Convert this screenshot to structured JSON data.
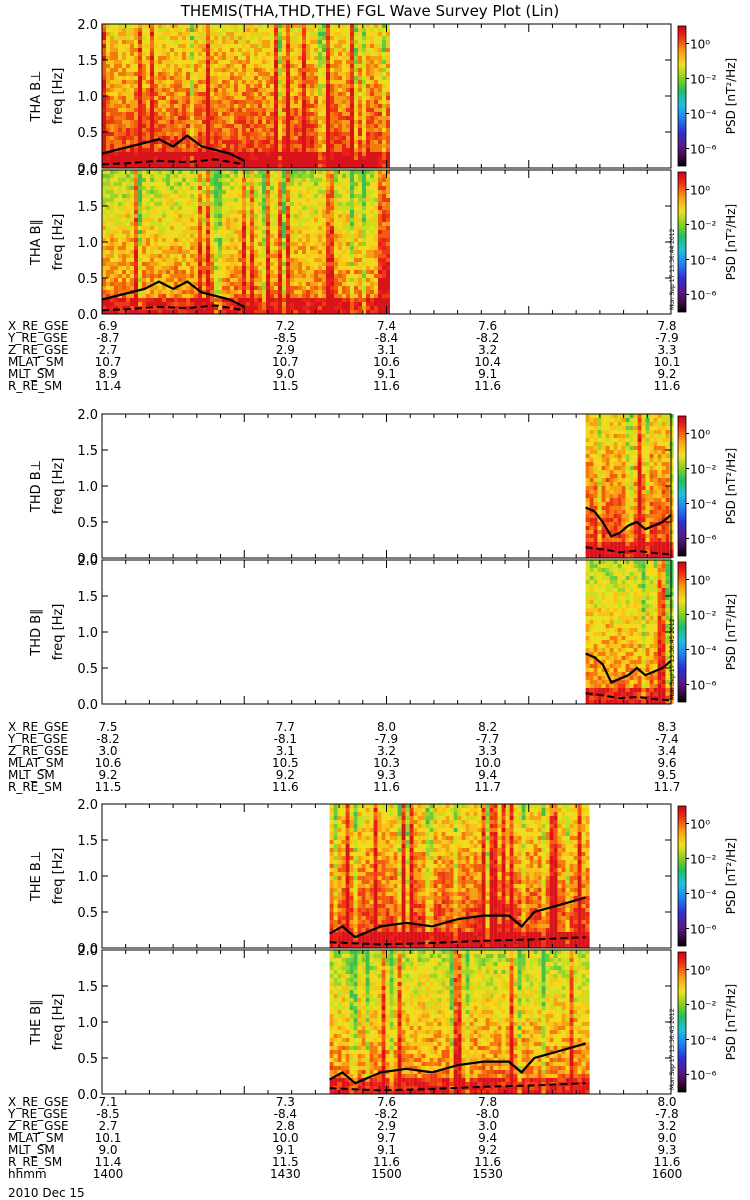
{
  "title": "THEMIS(THA,THD,THE) FGL Wave Survey Plot (Lin)",
  "date_label": "2010 Dec 15",
  "colorbar": {
    "label": "PSD [nT²/Hz]",
    "tick_labels": [
      "10⁰",
      "10⁻²",
      "10⁻⁴",
      "10⁻⁶"
    ],
    "tick_exponents": [
      0,
      -2,
      -4,
      -6
    ],
    "range_exponent": [
      -7,
      1
    ]
  },
  "ylabel_unit": "freq [Hz]",
  "colors": {
    "spectro_high": "#e8201a",
    "spectro_mid": "#f6d71c",
    "spectro_low": "#2fb84a",
    "line": "#000000"
  },
  "chart_data": [
    {
      "type": "heatmap",
      "probe": "THA",
      "panels": [
        {
          "name": "THA B⊥",
          "ylim": [
            0,
            2.0
          ],
          "yticks": [
            "0.0",
            "0.5",
            "1.0",
            "1.5",
            "2.0"
          ],
          "data_x_range": [
            0,
            0.5
          ],
          "solid_line": [
            [
              0,
              0.2
            ],
            [
              0.05,
              0.25
            ],
            [
              0.1,
              0.3
            ],
            [
              0.15,
              0.35
            ],
            [
              0.2,
              0.4
            ],
            [
              0.25,
              0.3
            ],
            [
              0.3,
              0.45
            ],
            [
              0.35,
              0.3
            ],
            [
              0.4,
              0.25
            ],
            [
              0.45,
              0.2
            ],
            [
              0.5,
              0.1
            ]
          ],
          "dashed_line": [
            [
              0,
              0.05
            ],
            [
              0.1,
              0.07
            ],
            [
              0.2,
              0.1
            ],
            [
              0.3,
              0.08
            ],
            [
              0.4,
              0.12
            ],
            [
              0.5,
              0.05
            ]
          ],
          "stamp": ""
        },
        {
          "name": "THA B∥",
          "ylim": [
            0,
            2.0
          ],
          "yticks": [
            "0.0",
            "0.5",
            "1.0",
            "1.5",
            "2.0"
          ],
          "data_x_range": [
            0,
            0.5
          ],
          "solid_line": [
            [
              0,
              0.2
            ],
            [
              0.05,
              0.25
            ],
            [
              0.1,
              0.3
            ],
            [
              0.15,
              0.35
            ],
            [
              0.2,
              0.45
            ],
            [
              0.25,
              0.35
            ],
            [
              0.3,
              0.45
            ],
            [
              0.35,
              0.3
            ],
            [
              0.4,
              0.25
            ],
            [
              0.45,
              0.2
            ],
            [
              0.5,
              0.1
            ]
          ],
          "dashed_line": [
            [
              0,
              0.05
            ],
            [
              0.1,
              0.07
            ],
            [
              0.2,
              0.1
            ],
            [
              0.3,
              0.08
            ],
            [
              0.4,
              0.12
            ],
            [
              0.5,
              0.05
            ]
          ],
          "stamp": "Mon Sep 17 13:36:44 2012"
        }
      ],
      "ephem": {
        "labels": [
          "X_RE_GSE",
          "Y_RE_GSE",
          "Z_RE_GSE",
          "MLAT_SM",
          "MLT_SM",
          "R_RE_SM"
        ],
        "columns": [
          [
            "6.9",
            "-8.7",
            "2.7",
            "10.7",
            "8.9",
            "11.4"
          ],
          [
            "7.2",
            "-8.5",
            "2.9",
            "10.7",
            "9.0",
            "11.5"
          ],
          [
            "7.4",
            "-8.4",
            "3.1",
            "10.6",
            "9.1",
            "11.6"
          ],
          [
            "7.6",
            "-8.2",
            "3.2",
            "10.4",
            "9.1",
            "11.6"
          ],
          [
            "7.8",
            "-7.9",
            "3.3",
            "10.1",
            "9.2",
            "11.6"
          ]
        ]
      }
    },
    {
      "type": "heatmap",
      "probe": "THD",
      "panels": [
        {
          "name": "THD B⊥",
          "ylim": [
            0,
            2.0
          ],
          "yticks": [
            "0.0",
            "0.5",
            "1.0",
            "1.5",
            "2.0"
          ],
          "data_x_range": [
            0.85,
            1.0
          ],
          "solid_line": [
            [
              0,
              0.7
            ],
            [
              0.1,
              0.65
            ],
            [
              0.2,
              0.5
            ],
            [
              0.3,
              0.3
            ],
            [
              0.4,
              0.35
            ],
            [
              0.5,
              0.45
            ],
            [
              0.6,
              0.5
            ],
            [
              0.7,
              0.4
            ],
            [
              0.8,
              0.45
            ],
            [
              0.9,
              0.5
            ],
            [
              1.0,
              0.6
            ]
          ],
          "dashed_line": [
            [
              0,
              0.15
            ],
            [
              0.2,
              0.12
            ],
            [
              0.4,
              0.08
            ],
            [
              0.6,
              0.1
            ],
            [
              0.8,
              0.07
            ],
            [
              1.0,
              0.05
            ]
          ],
          "stamp": ""
        },
        {
          "name": "THD B∥",
          "ylim": [
            0,
            2.0
          ],
          "yticks": [
            "0.0",
            "0.5",
            "1.0",
            "1.5",
            "2.0"
          ],
          "data_x_range": [
            0.85,
            1.0
          ],
          "solid_line": [
            [
              0,
              0.7
            ],
            [
              0.1,
              0.65
            ],
            [
              0.2,
              0.55
            ],
            [
              0.3,
              0.3
            ],
            [
              0.4,
              0.35
            ],
            [
              0.5,
              0.4
            ],
            [
              0.6,
              0.5
            ],
            [
              0.7,
              0.4
            ],
            [
              0.8,
              0.45
            ],
            [
              0.9,
              0.5
            ],
            [
              1.0,
              0.6
            ]
          ],
          "dashed_line": [
            [
              0,
              0.15
            ],
            [
              0.2,
              0.12
            ],
            [
              0.4,
              0.08
            ],
            [
              0.6,
              0.1
            ],
            [
              0.8,
              0.07
            ],
            [
              1.0,
              0.05
            ]
          ],
          "stamp": "Mon Sep 17 13:36:45 2012"
        }
      ],
      "ephem": {
        "labels": [
          "X_RE_GSE",
          "Y_RE_GSE",
          "Z_RE_GSE",
          "MLAT_SM",
          "MLT_SM",
          "R_RE_SM"
        ],
        "columns": [
          [
            "7.5",
            "-8.2",
            "3.0",
            "10.6",
            "9.2",
            "11.5"
          ],
          [
            "7.7",
            "-8.1",
            "3.1",
            "10.5",
            "9.2",
            "11.6"
          ],
          [
            "8.0",
            "-7.9",
            "3.2",
            "10.3",
            "9.3",
            "11.6"
          ],
          [
            "8.2",
            "-7.7",
            "3.3",
            "10.0",
            "9.4",
            "11.7"
          ],
          [
            "8.3",
            "-7.4",
            "3.4",
            "9.6",
            "9.5",
            "11.7"
          ]
        ]
      }
    },
    {
      "type": "heatmap",
      "probe": "THE",
      "panels": [
        {
          "name": "THE B⊥",
          "ylim": [
            0,
            2.0
          ],
          "yticks": [
            "0.0",
            "0.5",
            "1.0",
            "1.5",
            "2.0"
          ],
          "data_x_range": [
            0.4,
            0.85
          ],
          "solid_line": [
            [
              0,
              0.2
            ],
            [
              0.05,
              0.3
            ],
            [
              0.1,
              0.15
            ],
            [
              0.2,
              0.3
            ],
            [
              0.3,
              0.35
            ],
            [
              0.4,
              0.3
            ],
            [
              0.5,
              0.4
            ],
            [
              0.6,
              0.45
            ],
            [
              0.7,
              0.45
            ],
            [
              0.75,
              0.3
            ],
            [
              0.8,
              0.5
            ],
            [
              0.9,
              0.6
            ],
            [
              1.0,
              0.7
            ]
          ],
          "dashed_line": [
            [
              0,
              0.08
            ],
            [
              0.2,
              0.05
            ],
            [
              0.4,
              0.07
            ],
            [
              0.6,
              0.1
            ],
            [
              0.8,
              0.12
            ],
            [
              1.0,
              0.15
            ]
          ],
          "stamp": ""
        },
        {
          "name": "THE B∥",
          "ylim": [
            0,
            2.0
          ],
          "yticks": [
            "0.0",
            "0.5",
            "1.0",
            "1.5",
            "2.0"
          ],
          "data_x_range": [
            0.4,
            0.85
          ],
          "solid_line": [
            [
              0,
              0.2
            ],
            [
              0.05,
              0.3
            ],
            [
              0.1,
              0.15
            ],
            [
              0.2,
              0.3
            ],
            [
              0.3,
              0.35
            ],
            [
              0.4,
              0.3
            ],
            [
              0.5,
              0.4
            ],
            [
              0.6,
              0.45
            ],
            [
              0.7,
              0.45
            ],
            [
              0.75,
              0.3
            ],
            [
              0.8,
              0.5
            ],
            [
              0.9,
              0.6
            ],
            [
              1.0,
              0.7
            ]
          ],
          "dashed_line": [
            [
              0,
              0.08
            ],
            [
              0.2,
              0.05
            ],
            [
              0.4,
              0.07
            ],
            [
              0.6,
              0.1
            ],
            [
              0.8,
              0.12
            ],
            [
              1.0,
              0.15
            ]
          ],
          "stamp": "Mon Sep 17 13:36:45 2012"
        }
      ],
      "ephem": {
        "labels": [
          "X_RE_GSE",
          "Y_RE_GSE",
          "Z_RE_GSE",
          "MLAT_SM",
          "MLT_SM",
          "R_RE_SM",
          "hhmm"
        ],
        "columns": [
          [
            "7.1",
            "-8.5",
            "2.7",
            "10.1",
            "9.0",
            "11.4",
            "1400"
          ],
          [
            "7.3",
            "-8.4",
            "2.8",
            "10.0",
            "9.1",
            "11.5",
            "1430"
          ],
          [
            "7.6",
            "-8.2",
            "2.9",
            "9.7",
            "9.1",
            "11.6",
            "1500"
          ],
          [
            "7.8",
            "-8.0",
            "3.0",
            "9.4",
            "9.2",
            "11.6",
            "1530"
          ],
          [
            "8.0",
            "-7.8",
            "3.2",
            "9.0",
            "9.3",
            "11.6",
            "1600"
          ]
        ]
      }
    }
  ]
}
